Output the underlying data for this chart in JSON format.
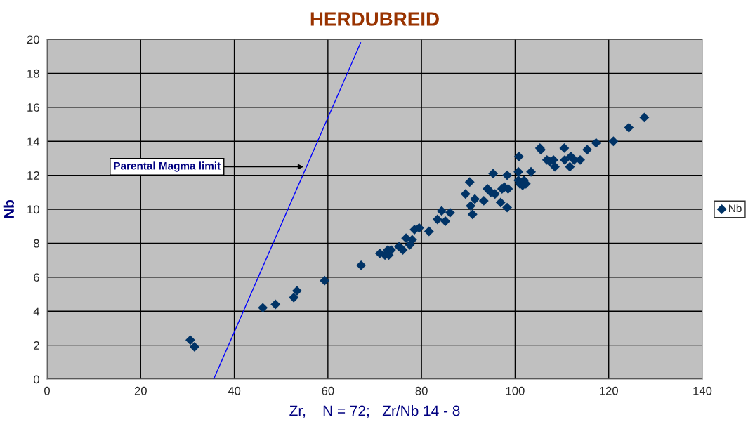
{
  "chart_data": {
    "type": "scatter",
    "title": "HERDUBREID",
    "xlabel": "Zr,    N = 72;   Zr/Nb 14 - 8",
    "ylabel": "Nb",
    "xlim": [
      0,
      140
    ],
    "xticks": [
      0,
      20,
      40,
      60,
      80,
      100,
      120,
      140
    ],
    "ylim": [
      0,
      20
    ],
    "yticks": [
      0,
      2,
      4,
      6,
      8,
      10,
      12,
      14,
      16,
      18,
      20
    ],
    "grid": true,
    "legend": "right",
    "annotations": [
      {
        "text": "Parental Magma limit",
        "x": 54.8,
        "y": 12.5
      }
    ],
    "series": [
      {
        "name": "Nb",
        "marker": "diamond",
        "color": "#003366",
        "x": [
          30.6,
          31.5,
          46.1,
          48.8,
          52.7,
          53.4,
          59.3,
          67.1,
          71.1,
          72.2,
          72.8,
          73.0,
          73.5,
          75.2,
          76.0,
          76.7,
          77.5,
          78.0,
          78.5,
          79.5,
          81.6,
          83.4,
          84.3,
          85.1,
          86.1,
          89.4,
          90.3,
          90.5,
          90.9,
          91.4,
          93.3,
          94.1,
          94.8,
          95.3,
          95.7,
          96.9,
          97.2,
          97.7,
          98.3,
          98.3,
          98.5,
          100.8,
          100.7,
          100.7,
          101.0,
          101.9,
          101.6,
          102.3,
          103.4,
          105.3,
          105.5,
          106.8,
          107.4,
          108.2,
          108.5,
          110.5,
          110.6,
          111.7,
          111.9,
          112.6,
          113.9,
          115.4,
          117.3,
          121.0,
          124.3,
          127.6
        ],
        "values": [
          2.3,
          1.9,
          4.2,
          4.4,
          4.8,
          5.2,
          5.8,
          6.7,
          7.4,
          7.3,
          7.6,
          7.3,
          7.6,
          7.8,
          7.6,
          8.3,
          7.9,
          8.2,
          8.8,
          8.9,
          8.7,
          9.4,
          9.9,
          9.3,
          9.8,
          10.9,
          11.6,
          10.2,
          9.7,
          10.6,
          10.5,
          11.2,
          11.0,
          12.1,
          10.9,
          10.4,
          11.2,
          11.3,
          10.1,
          12.0,
          11.2,
          13.1,
          12.2,
          11.7,
          11.5,
          11.7,
          11.4,
          11.5,
          12.2,
          13.6,
          13.5,
          12.9,
          12.8,
          12.9,
          12.5,
          13.6,
          12.9,
          12.5,
          13.1,
          12.9,
          12.9,
          13.5,
          13.9,
          14.0,
          14.8,
          15.4
        ]
      },
      {
        "type": "line",
        "color": "#0000ff",
        "x": [
          35.6,
          67.0
        ],
        "values": [
          0,
          19.8
        ]
      }
    ]
  }
}
